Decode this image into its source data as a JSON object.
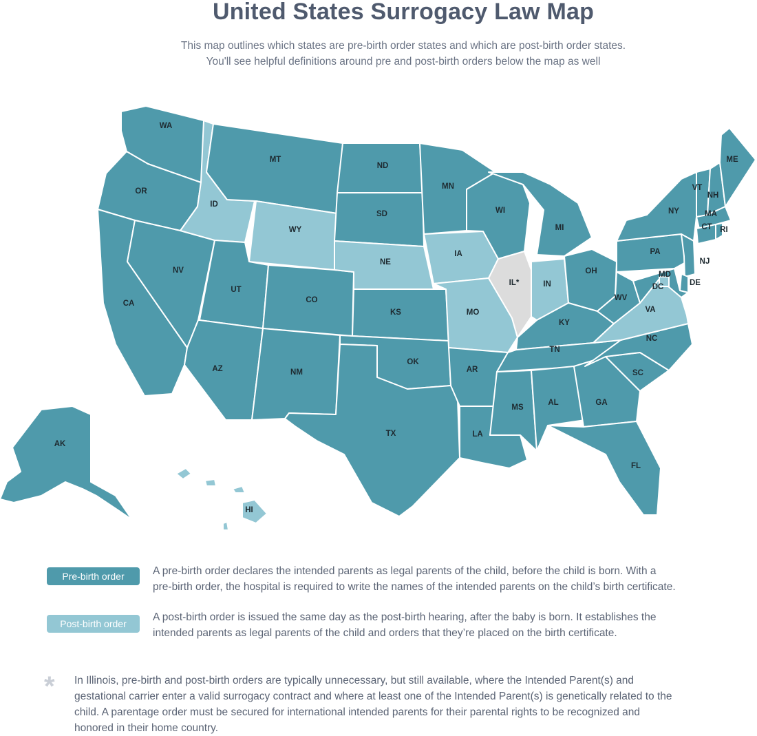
{
  "header": {
    "title": "United States Surrogacy Law Map",
    "subtitle_line1": "This map outlines which states are pre-birth order states and which are post-birth order states.",
    "subtitle_line2": "You'll see helpful definitions around pre and post-birth orders below the map as well"
  },
  "colors": {
    "pre_birth": "#4f9aab",
    "post_birth": "#93c7d4",
    "illinois": "#dcdcdc",
    "border": "#ffffff"
  },
  "map": {
    "states": [
      {
        "abbr": "WA",
        "category": "pre"
      },
      {
        "abbr": "OR",
        "category": "pre"
      },
      {
        "abbr": "CA",
        "category": "pre"
      },
      {
        "abbr": "NV",
        "category": "pre"
      },
      {
        "abbr": "ID",
        "category": "post"
      },
      {
        "abbr": "MT",
        "category": "pre"
      },
      {
        "abbr": "WY",
        "category": "post"
      },
      {
        "abbr": "UT",
        "category": "pre"
      },
      {
        "abbr": "CO",
        "category": "pre"
      },
      {
        "abbr": "AZ",
        "category": "pre"
      },
      {
        "abbr": "NM",
        "category": "pre"
      },
      {
        "abbr": "ND",
        "category": "pre"
      },
      {
        "abbr": "SD",
        "category": "pre"
      },
      {
        "abbr": "NE",
        "category": "post"
      },
      {
        "abbr": "KS",
        "category": "pre"
      },
      {
        "abbr": "OK",
        "category": "pre"
      },
      {
        "abbr": "TX",
        "category": "pre"
      },
      {
        "abbr": "MN",
        "category": "pre"
      },
      {
        "abbr": "IA",
        "category": "post"
      },
      {
        "abbr": "MO",
        "category": "post"
      },
      {
        "abbr": "AR",
        "category": "pre"
      },
      {
        "abbr": "LA",
        "category": "pre"
      },
      {
        "abbr": "WI",
        "category": "pre"
      },
      {
        "abbr": "IL*",
        "category": "il"
      },
      {
        "abbr": "MI",
        "category": "pre"
      },
      {
        "abbr": "IN",
        "category": "post"
      },
      {
        "abbr": "OH",
        "category": "pre"
      },
      {
        "abbr": "KY",
        "category": "pre"
      },
      {
        "abbr": "TN",
        "category": "pre"
      },
      {
        "abbr": "MS",
        "category": "pre"
      },
      {
        "abbr": "AL",
        "category": "pre"
      },
      {
        "abbr": "GA",
        "category": "pre"
      },
      {
        "abbr": "FL",
        "category": "pre"
      },
      {
        "abbr": "SC",
        "category": "pre"
      },
      {
        "abbr": "NC",
        "category": "pre"
      },
      {
        "abbr": "VA",
        "category": "post"
      },
      {
        "abbr": "WV",
        "category": "pre"
      },
      {
        "abbr": "PA",
        "category": "pre"
      },
      {
        "abbr": "NY",
        "category": "pre"
      },
      {
        "abbr": "VT",
        "category": "pre"
      },
      {
        "abbr": "NH",
        "category": "pre"
      },
      {
        "abbr": "ME",
        "category": "pre"
      },
      {
        "abbr": "MA",
        "category": "pre"
      },
      {
        "abbr": "CT",
        "category": "pre"
      },
      {
        "abbr": "RI",
        "category": "pre"
      },
      {
        "abbr": "NJ",
        "category": "pre"
      },
      {
        "abbr": "DE",
        "category": "pre"
      },
      {
        "abbr": "MD",
        "category": "pre"
      },
      {
        "abbr": "DC",
        "category": "post"
      },
      {
        "abbr": "AK",
        "category": "pre"
      },
      {
        "abbr": "HI",
        "category": "post"
      }
    ]
  },
  "legend": {
    "pre": {
      "label": "Pre-birth order",
      "line1": "A pre-birth order declares the intended parents as legal parents of the child, before the child is born. With a",
      "line2": "pre-birth order, the hospital is required to write the names of the intended parents on the child’s birth certificate."
    },
    "post": {
      "label": "Post-birth order",
      "line1": "A post-birth order is issued the same day as the post-birth hearing, after the baby is born. It establishes the",
      "line2": "intended parents as legal parents of the child and orders that they’re placed on the birth certificate."
    }
  },
  "footnote": {
    "symbol": "*",
    "line1": "In Illinois, pre-birth and post-birth orders are typically unnecessary, but still available, where the Intended Parent(s) and",
    "line2": "gestational carrier enter a valid surrogacy contract and where at least one of the Intended Parent(s) is genetically related to the",
    "line3": "child. A parentage order must be secured for international intended parents for their parental rights to be recognized and",
    "line4": "honored in their home country."
  }
}
